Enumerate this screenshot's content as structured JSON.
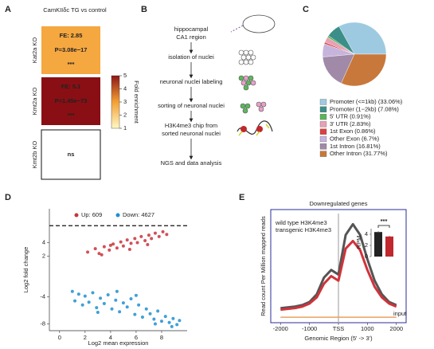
{
  "panel_labels": [
    "A",
    "B",
    "C",
    "D",
    "E"
  ],
  "diagram": {
    "steps": [
      [
        "hippocampal",
        "CA1 region"
      ],
      [
        "isolation of nuclei"
      ],
      [
        "neuronal nuclei labeling"
      ],
      [
        "sorting of neuronal nuclei"
      ],
      [
        "H3K4me3 chip from",
        "sorted neuronal nuclei"
      ],
      [
        "NGS and data analysis"
      ]
    ]
  },
  "chart_data": [
    {
      "type": "heatmap",
      "title": "CamKIIδc TG vs control",
      "rows": [
        "Kat2a KO",
        "Kmt2a KO",
        "Kmt2b KO"
      ],
      "values": [
        2.85,
        5.1,
        null
      ],
      "cell_labels": [
        [
          "FE: 2.85",
          "P=3.08e−17",
          "***"
        ],
        [
          "FE: 5.1",
          "P=1.45e−73",
          "***"
        ],
        [
          "ns"
        ]
      ],
      "colorbar_label": "Fold enrichment",
      "colorbar_lim": [
        1,
        5
      ],
      "colorbar_ticks": [
        1,
        2,
        3,
        4,
        5
      ],
      "colors": [
        "#fff8c4",
        "#f4a035",
        "#8e1616"
      ]
    },
    {
      "type": "pie",
      "categories": [
        "Promoter (<=1kb) (33.06%)",
        "Promoter (1−2kb) (7.08%)",
        "5' UTR (0.91%)",
        "3' UTR (2.83%)",
        "1st Exon (0.86%)",
        "Other Exon (6.7%)",
        "1st Intron (16.81%)",
        "Other Intron (31.77%)"
      ],
      "values": [
        33.06,
        7.08,
        0.91,
        2.83,
        0.86,
        6.7,
        16.81,
        31.77
      ],
      "colors": [
        "#9ecae1",
        "#3b8f88",
        "#5ab45a",
        "#e8a0b4",
        "#d94040",
        "#c7b4dc",
        "#a08aa8",
        "#c8783a"
      ]
    },
    {
      "type": "scatter",
      "x_label": "Log2 mean expression",
      "y_label": "Log2 fold change",
      "xlim": [
        -0.8,
        10
      ],
      "xticks": [
        0,
        2,
        4,
        6,
        8
      ],
      "ylim": [
        -9,
        9
      ],
      "yticks": [
        -8,
        -4,
        2,
        4
      ],
      "hline": 6.5,
      "series": [
        {
          "name": "Up: 609",
          "color": "#c9333a",
          "x": [
            2.2,
            2.8,
            3.1,
            3.5,
            3.9,
            4.2,
            4.5,
            4.8,
            5.0,
            5.3,
            5.6,
            5.9,
            6.1,
            6.4,
            6.7,
            7.0,
            7.2,
            7.5,
            7.8,
            8.1,
            8.4,
            3.3,
            5.5,
            6.9,
            4.0
          ],
          "values": [
            2.6,
            3.1,
            2.4,
            3.4,
            2.9,
            3.8,
            3.2,
            4.1,
            3.5,
            4.4,
            3.9,
            4.6,
            4.0,
            4.9,
            4.3,
            5.1,
            4.6,
            5.4,
            4.9,
            5.6,
            5.2,
            2.2,
            3.0,
            3.7,
            3.6
          ]
        },
        {
          "name": "Down: 4627",
          "color": "#1f8fd0",
          "x": [
            1.0,
            1.2,
            1.5,
            1.8,
            2.0,
            2.3,
            2.6,
            2.9,
            3.2,
            3.5,
            3.8,
            4.1,
            4.4,
            4.7,
            5.0,
            5.3,
            5.6,
            5.9,
            6.2,
            6.5,
            6.8,
            7.1,
            7.4,
            7.7,
            8.0,
            8.3,
            8.6,
            8.9,
            9.2,
            9.4,
            3.0,
            6.0,
            7.5,
            8.8,
            4.5
          ],
          "values": [
            -3.2,
            -4.6,
            -3.6,
            -5.2,
            -3.9,
            -4.8,
            -3.4,
            -5.6,
            -4.2,
            -5.0,
            -3.7,
            -5.8,
            -4.5,
            -6.2,
            -4.9,
            -5.5,
            -4.3,
            -6.6,
            -5.2,
            -7.0,
            -5.8,
            -6.5,
            -7.3,
            -6.1,
            -7.6,
            -6.9,
            -7.8,
            -7.2,
            -8.1,
            -7.5,
            -6.3,
            -3.8,
            -8.0,
            -8.4,
            -3.2
          ]
        }
      ]
    },
    {
      "type": "line",
      "title": "Downregulated genes",
      "x_label": "Genomic Region (5' -> 3')",
      "y_label": "Read count Per Million mapped reads",
      "xlim": [
        -2200,
        2200
      ],
      "xticks": [
        -2000,
        -1000,
        {
          "value": 0,
          "label": "TSS"
        },
        1000,
        2000
      ],
      "ylim": [
        0,
        7
      ],
      "annotation": "input",
      "x": [
        -2000,
        -1750,
        -1500,
        -1250,
        -1000,
        -750,
        -500,
        -250,
        0,
        250,
        500,
        750,
        1000,
        1250,
        1500,
        1750,
        2000
      ],
      "series": [
        {
          "name": "wild type H3K4me3",
          "color": "#555555",
          "values": [
            0.8,
            0.85,
            0.9,
            1.0,
            1.2,
            1.7,
            2.8,
            3.3,
            3.0,
            5.6,
            6.3,
            5.6,
            4.0,
            2.6,
            1.7,
            1.2,
            1.0
          ]
        },
        {
          "name": "transgenic H3K4me3",
          "color": "#d0333a",
          "values": [
            0.7,
            0.75,
            0.8,
            0.9,
            1.1,
            1.5,
            2.4,
            2.9,
            2.6,
            4.7,
            5.2,
            4.6,
            3.3,
            2.2,
            1.5,
            1.1,
            0.9
          ]
        },
        {
          "name": "input",
          "color": "#e8a060",
          "values": [
            0.2,
            0.2,
            0.2,
            0.2,
            0.2,
            0.2,
            0.2,
            0.2,
            0.2,
            0.2,
            0.2,
            0.2,
            0.2,
            0.2,
            0.2,
            0.2,
            0.2
          ]
        }
      ]
    },
    {
      "type": "bar",
      "y_label": "RPM",
      "annotation": "***",
      "ylim": [
        0,
        5
      ],
      "yticks": [
        0,
        2,
        4
      ],
      "values": [
        4.4,
        3.6
      ],
      "errors": [
        0.15,
        0.12
      ],
      "colors": [
        "#222222",
        "#c0282d"
      ]
    }
  ]
}
